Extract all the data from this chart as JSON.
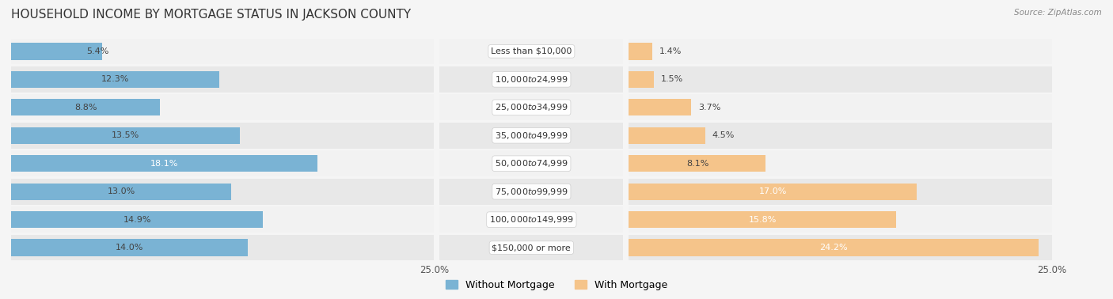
{
  "title": "HOUSEHOLD INCOME BY MORTGAGE STATUS IN JACKSON COUNTY",
  "source": "Source: ZipAtlas.com",
  "categories": [
    "Less than $10,000",
    "$10,000 to $24,999",
    "$25,000 to $34,999",
    "$35,000 to $49,999",
    "$50,000 to $74,999",
    "$75,000 to $99,999",
    "$100,000 to $149,999",
    "$150,000 or more"
  ],
  "without_mortgage": [
    5.4,
    12.3,
    8.8,
    13.5,
    18.1,
    13.0,
    14.9,
    14.0
  ],
  "with_mortgage": [
    1.4,
    1.5,
    3.7,
    4.5,
    8.1,
    17.0,
    15.8,
    24.2
  ],
  "color_without": "#7ab3d4",
  "color_with": "#f5c48a",
  "bg_row_odd": "#f2f2f2",
  "bg_row_even": "#e8e8e8",
  "bg_main": "#f5f5f5",
  "axis_limit": 25.0,
  "title_fontsize": 11,
  "label_fontsize": 8,
  "value_fontsize": 8,
  "tick_fontsize": 8.5,
  "legend_fontsize": 9,
  "bar_height": 0.6
}
